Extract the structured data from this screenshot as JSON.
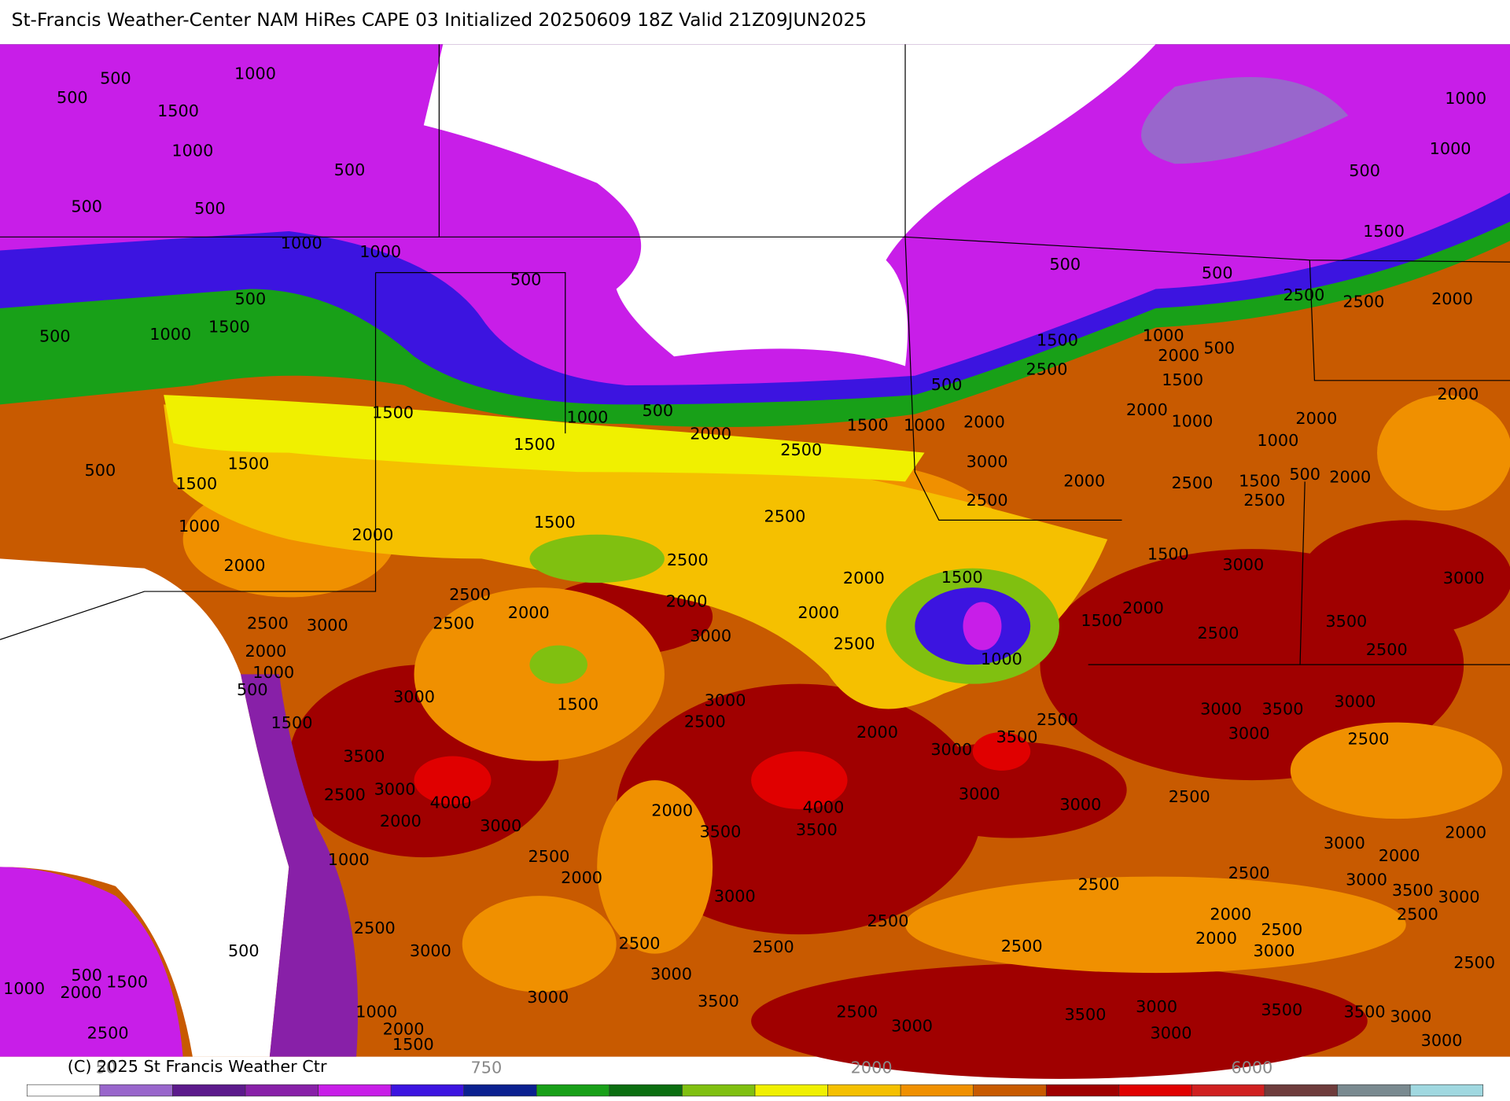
{
  "title": "St-Francis Weather-Center NAM HiRes CAPE  03 Initialized 20250609 18Z Valid 21Z09JUN2025",
  "copyright": "(C) 2025 St Francis Weather Ctr",
  "contour_labels": [
    500,
    1000,
    500,
    1500,
    1000,
    500,
    500,
    500,
    1000,
    1000,
    500,
    500,
    1500,
    1000,
    500,
    1500,
    1000,
    500,
    1500,
    2000,
    2500,
    1500,
    1000,
    500,
    2000,
    3000,
    2000,
    2500,
    1500,
    2500,
    1000,
    2000,
    500,
    1500,
    2000,
    1000,
    500,
    500,
    2500,
    2500,
    2000,
    1000,
    1000,
    500,
    1500,
    2000,
    2000,
    1000,
    1500,
    500,
    2000,
    2500,
    2500,
    1500,
    3000,
    3000,
    2000,
    1500,
    2500,
    3500,
    2500,
    500,
    1500,
    1500,
    1000,
    2000,
    2000,
    1500,
    2500,
    2500,
    2000,
    2000,
    2000,
    1500,
    2500,
    2500,
    2000,
    3000,
    2500,
    2000,
    1000,
    500,
    3000,
    2500,
    1000,
    3000,
    1500,
    3000,
    2500,
    1500,
    2000,
    2500,
    3500,
    3000,
    3000,
    3500,
    3000,
    3000,
    2500,
    3500,
    3000,
    4000,
    2500,
    2000,
    3000,
    2000,
    4000,
    3500,
    3500,
    3000,
    3000,
    2500,
    1000,
    2500,
    2000,
    3000,
    2500,
    2500,
    2000,
    3000,
    2000,
    3000,
    3500,
    3000,
    2500,
    2500,
    3000,
    500,
    2500,
    2500,
    2500,
    2500,
    2000,
    2500,
    2000,
    3000,
    2500,
    3000,
    3000,
    3500,
    2500,
    3000,
    3500,
    3000,
    3000,
    3500,
    3500,
    3000,
    3000,
    1000,
    2000,
    1500,
    1000,
    500,
    2000,
    1500,
    2500
  ],
  "colorbar": {
    "colors": [
      "#ffffff",
      "#9966cc",
      "#5c1a8c",
      "#8820a8",
      "#c81ee8",
      "#3c14e0",
      "#0a2090",
      "#18a018",
      "#0a6e10",
      "#80c010",
      "#f0f000",
      "#f5c000",
      "#f09000",
      "#c85a00",
      "#a00000",
      "#e00000",
      "#d02020",
      "#6e3c3c",
      "#7a8a90",
      "#a0d8e0"
    ],
    "labels": [
      "50",
      "750",
      "2000",
      "6000"
    ]
  }
}
